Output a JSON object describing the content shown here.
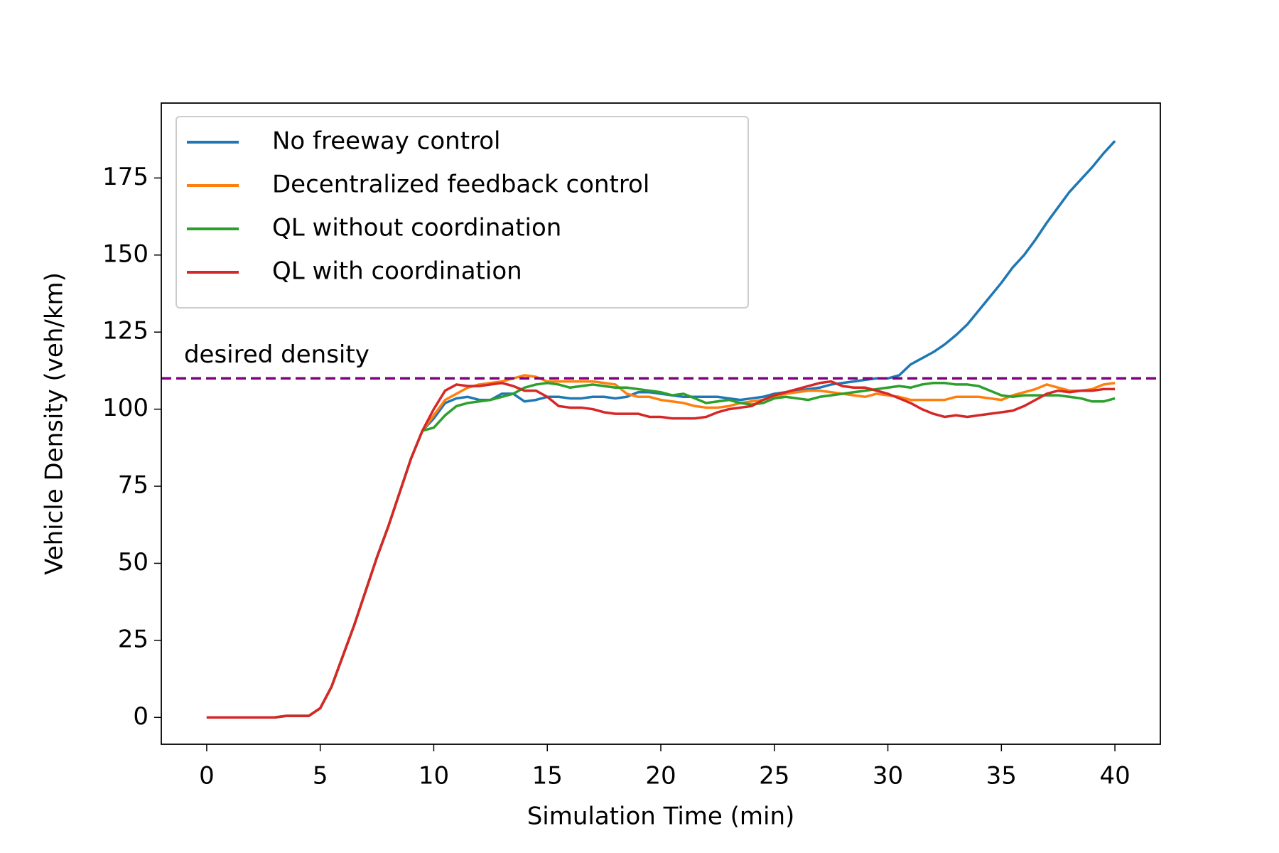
{
  "chart_data": {
    "type": "line",
    "xlabel": "Simulation Time (min)",
    "ylabel": "Vehicle Density (veh/km)",
    "x": [
      0,
      0.5,
      1,
      1.5,
      2,
      2.5,
      3,
      3.5,
      4,
      4.5,
      5,
      5.5,
      6,
      6.5,
      7,
      7.5,
      8,
      8.5,
      9,
      9.5,
      10,
      10.5,
      11,
      11.5,
      12,
      12.5,
      13,
      13.5,
      14,
      14.5,
      15,
      15.5,
      16,
      16.5,
      17,
      17.5,
      18,
      18.5,
      19,
      19.5,
      20,
      20.5,
      21,
      21.5,
      22,
      22.5,
      23,
      23.5,
      24,
      24.5,
      25,
      25.5,
      26,
      26.5,
      27,
      27.5,
      28,
      28.5,
      29,
      29.5,
      30,
      30.5,
      31,
      31.5,
      32,
      32.5,
      33,
      33.5,
      34,
      34.5,
      35,
      35.5,
      36,
      36.5,
      37,
      37.5,
      38,
      38.5,
      39,
      39.5,
      40
    ],
    "series": [
      {
        "name": "No freeway control",
        "color": "#1f77b4",
        "values": [
          0,
          0,
          0,
          0,
          0,
          0,
          0,
          0.5,
          0.5,
          0.5,
          3,
          10,
          20,
          30,
          41,
          52,
          62,
          73,
          84,
          93,
          97,
          102,
          103.5,
          104,
          103,
          103,
          105,
          105,
          102.5,
          103,
          104,
          104,
          103.5,
          103.5,
          104,
          104,
          103.5,
          104,
          105.5,
          105.5,
          105,
          104.5,
          104,
          104,
          104,
          104,
          103.5,
          103,
          103.5,
          104,
          105,
          105.5,
          106,
          106.5,
          107,
          108,
          108.5,
          109,
          109.5,
          110,
          110,
          111,
          114.5,
          116.5,
          118.5,
          121,
          124,
          127.5,
          132,
          136.5,
          141,
          146,
          150,
          155,
          160.5,
          165.5,
          170.5,
          174.5,
          178.5,
          183,
          187
        ]
      },
      {
        "name": "Decentralized feedback control",
        "color": "#ff7f0e",
        "values": [
          0,
          0,
          0,
          0,
          0,
          0,
          0,
          0.5,
          0.5,
          0.5,
          3,
          10,
          20,
          30,
          41,
          52,
          62,
          73,
          84,
          93,
          98,
          103,
          105,
          107,
          108,
          108.5,
          109,
          110,
          111,
          110.5,
          109,
          109,
          109,
          109,
          109,
          108.5,
          108,
          105,
          104,
          104,
          103,
          102.5,
          102,
          101,
          100.5,
          100.5,
          101,
          102,
          102.5,
          103,
          104,
          105,
          105.5,
          106,
          106,
          105.5,
          105,
          104.5,
          104,
          105,
          104.5,
          104,
          103,
          103,
          103,
          103,
          104,
          104,
          104,
          103.5,
          103,
          104.5,
          105.5,
          106.5,
          108,
          107,
          106,
          106,
          106.5,
          108,
          108.5
        ]
      },
      {
        "name": "QL without coordination",
        "color": "#2ca02c",
        "values": [
          0,
          0,
          0,
          0,
          0,
          0,
          0,
          0.5,
          0.5,
          0.5,
          3,
          10,
          20,
          30,
          41,
          52,
          62,
          73,
          84,
          93,
          94,
          98,
          101,
          102,
          102.5,
          103,
          104,
          105,
          107,
          108,
          108.5,
          108,
          107,
          107.5,
          108,
          107.5,
          107,
          107,
          106.5,
          106,
          105.5,
          104.5,
          105,
          103.5,
          102,
          102.5,
          103,
          102,
          101.5,
          102,
          103.5,
          104,
          103.5,
          103,
          104,
          104.5,
          105,
          105.5,
          106,
          106.5,
          107,
          107.5,
          107,
          108,
          108.5,
          108.5,
          108,
          108,
          107.5,
          106,
          104.5,
          104,
          104.5,
          104.5,
          104.5,
          104.5,
          104,
          103.5,
          102.5,
          102.5,
          103.5
        ]
      },
      {
        "name": "QL with coordination",
        "color": "#d62728",
        "values": [
          0,
          0,
          0,
          0,
          0,
          0,
          0,
          0.5,
          0.5,
          0.5,
          3,
          10,
          20,
          30,
          41,
          52,
          62,
          73,
          84,
          93,
          100,
          106,
          108,
          107.5,
          107.5,
          108,
          108.5,
          107.5,
          106,
          106,
          104,
          101,
          100.5,
          100.5,
          100,
          99,
          98.5,
          98.5,
          98.5,
          97.5,
          97.5,
          97,
          97,
          97,
          97.5,
          99,
          100,
          100.5,
          101,
          103,
          104.5,
          105.5,
          106.5,
          107.5,
          108.5,
          109,
          107.5,
          107,
          107,
          106,
          105,
          103.5,
          102,
          100,
          98.5,
          97.5,
          98,
          97.5,
          98,
          98.5,
          99,
          99.5,
          101,
          103,
          105,
          106,
          105.5,
          106,
          106,
          106.5,
          106.5
        ]
      }
    ],
    "hline": {
      "y": 110,
      "color": "#800080",
      "label": "desired density"
    },
    "xlim": [
      -2,
      42
    ],
    "xticks": [
      0,
      5,
      10,
      15,
      20,
      25,
      30,
      35,
      40
    ],
    "ylim": [
      -8.7,
      199.3
    ],
    "yticks": [
      0,
      25,
      50,
      75,
      100,
      125,
      150,
      175
    ],
    "legend": "upper left",
    "grid": false
  }
}
